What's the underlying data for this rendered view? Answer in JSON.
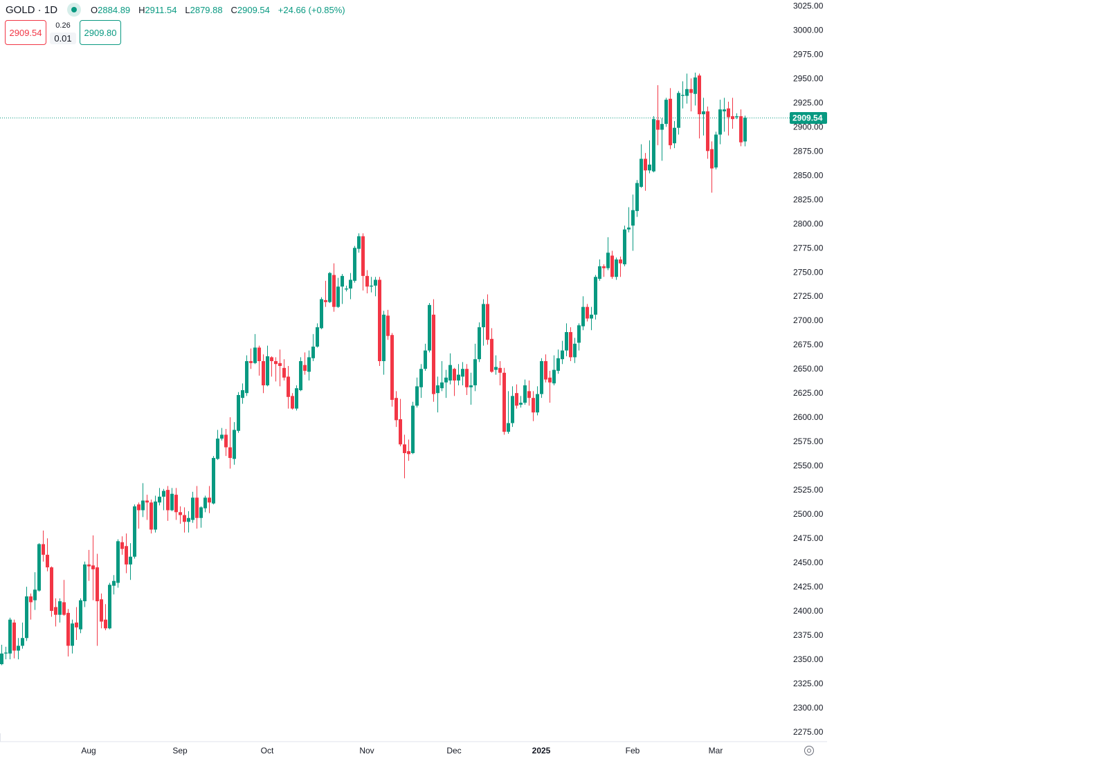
{
  "header": {
    "symbol": "GOLD",
    "separator": " · ",
    "interval": "1D",
    "status_icon": "market-open-dot",
    "ohlc": {
      "o_label": "O",
      "o": "2884.89",
      "h_label": "H",
      "h": "2911.54",
      "l_label": "L",
      "l": "2879.88",
      "c_label": "C",
      "c": "2909.54",
      "change": "+24.66 (+0.85%)"
    },
    "sell_price": "2909.54",
    "spread_top": "0.26",
    "spread": "0.01",
    "buy_price": "2909.80"
  },
  "chart_data": {
    "type": "candlestick",
    "columns": [
      "open",
      "high",
      "low",
      "close"
    ],
    "candles": [
      [
        2345,
        2365,
        2344,
        2356
      ],
      [
        2356,
        2363,
        2350,
        2357
      ],
      [
        2356,
        2393,
        2350,
        2391
      ],
      [
        2388,
        2391,
        2351,
        2359
      ],
      [
        2359,
        2372,
        2350,
        2364
      ],
      [
        2364,
        2388,
        2361,
        2372
      ],
      [
        2372,
        2425,
        2369,
        2415
      ],
      [
        2415,
        2418,
        2391,
        2409
      ],
      [
        2411,
        2440,
        2401,
        2422
      ],
      [
        2421,
        2470,
        2420,
        2469
      ],
      [
        2469,
        2483,
        2451,
        2458
      ],
      [
        2458,
        2475,
        2441,
        2445
      ],
      [
        2445,
        2446,
        2394,
        2400
      ],
      [
        2404,
        2413,
        2384,
        2396
      ],
      [
        2396,
        2413,
        2388,
        2410
      ],
      [
        2409,
        2432,
        2395,
        2396
      ],
      [
        2398,
        2402,
        2353,
        2364
      ],
      [
        2364,
        2391,
        2356,
        2387
      ],
      [
        2388,
        2404,
        2370,
        2383
      ],
      [
        2381,
        2413,
        2377,
        2411
      ],
      [
        2410,
        2451,
        2404,
        2448
      ],
      [
        2448,
        2463,
        2431,
        2446
      ],
      [
        2447,
        2478,
        2411,
        2443
      ],
      [
        2445,
        2459,
        2364,
        2410
      ],
      [
        2412,
        2418,
        2382,
        2389
      ],
      [
        2391,
        2407,
        2380,
        2382
      ],
      [
        2382,
        2429,
        2381,
        2427
      ],
      [
        2426,
        2437,
        2417,
        2431
      ],
      [
        2429,
        2474,
        2424,
        2472
      ],
      [
        2471,
        2477,
        2458,
        2464
      ],
      [
        2467,
        2480,
        2439,
        2448
      ],
      [
        2448,
        2470,
        2432,
        2456
      ],
      [
        2456,
        2510,
        2454,
        2508
      ],
      [
        2510,
        2512,
        2485,
        2504
      ],
      [
        2504,
        2532,
        2497,
        2514
      ],
      [
        2514,
        2520,
        2494,
        2512
      ],
      [
        2512,
        2515,
        2480,
        2484
      ],
      [
        2484,
        2519,
        2481,
        2513
      ],
      [
        2512,
        2527,
        2509,
        2518
      ],
      [
        2518,
        2526,
        2504,
        2524
      ],
      [
        2525,
        2529,
        2493,
        2504
      ],
      [
        2504,
        2527,
        2503,
        2521
      ],
      [
        2520,
        2527,
        2494,
        2502
      ],
      [
        2502,
        2508,
        2490,
        2499
      ],
      [
        2499,
        2507,
        2481,
        2492
      ],
      [
        2492,
        2503,
        2481,
        2496
      ],
      [
        2494,
        2523,
        2491,
        2517
      ],
      [
        2517,
        2529,
        2485,
        2496
      ],
      [
        2496,
        2508,
        2486,
        2507
      ],
      [
        2506,
        2519,
        2502,
        2517
      ],
      [
        2517,
        2529,
        2501,
        2512
      ],
      [
        2511,
        2560,
        2510,
        2558
      ],
      [
        2557,
        2587,
        2556,
        2578
      ],
      [
        2578,
        2589,
        2576,
        2582
      ],
      [
        2582,
        2588,
        2560,
        2569
      ],
      [
        2569,
        2600,
        2547,
        2558
      ],
      [
        2557,
        2595,
        2551,
        2587
      ],
      [
        2586,
        2626,
        2584,
        2623
      ],
      [
        2620,
        2635,
        2614,
        2628
      ],
      [
        2625,
        2664,
        2622,
        2658
      ],
      [
        2658,
        2671,
        2650,
        2656
      ],
      [
        2656,
        2686,
        2655,
        2672
      ],
      [
        2672,
        2674,
        2643,
        2658
      ],
      [
        2658,
        2665,
        2625,
        2633
      ],
      [
        2633,
        2674,
        2632,
        2663
      ],
      [
        2662,
        2663,
        2642,
        2658
      ],
      [
        2658,
        2662,
        2637,
        2655
      ],
      [
        2656,
        2670,
        2632,
        2653
      ],
      [
        2651,
        2660,
        2638,
        2641
      ],
      [
        2642,
        2653,
        2609,
        2621
      ],
      [
        2622,
        2625,
        2608,
        2609
      ],
      [
        2609,
        2633,
        2607,
        2630
      ],
      [
        2628,
        2662,
        2627,
        2658
      ],
      [
        2654,
        2667,
        2644,
        2648
      ],
      [
        2647,
        2669,
        2638,
        2662
      ],
      [
        2661,
        2686,
        2658,
        2673
      ],
      [
        2673,
        2697,
        2672,
        2693
      ],
      [
        2692,
        2724,
        2691,
        2722
      ],
      [
        2721,
        2741,
        2714,
        2719
      ],
      [
        2719,
        2750,
        2718,
        2749
      ],
      [
        2747,
        2759,
        2709,
        2714
      ],
      [
        2714,
        2744,
        2713,
        2735
      ],
      [
        2735,
        2748,
        2717,
        2746
      ],
      [
        2732,
        2736,
        2730,
        2733
      ],
      [
        2733,
        2749,
        2722,
        2742
      ],
      [
        2741,
        2777,
        2739,
        2775
      ],
      [
        2774,
        2790,
        2770,
        2787
      ],
      [
        2787,
        2790,
        2731,
        2746
      ],
      [
        2746,
        2752,
        2728,
        2735
      ],
      [
        2735,
        2745,
        2729,
        2736
      ],
      [
        2736,
        2745,
        2725,
        2742
      ],
      [
        2742,
        2745,
        2653,
        2658
      ],
      [
        2658,
        2710,
        2644,
        2706
      ],
      [
        2705,
        2711,
        2680,
        2684
      ],
      [
        2685,
        2687,
        2611,
        2618
      ],
      [
        2620,
        2627,
        2590,
        2597
      ],
      [
        2598,
        2619,
        2570,
        2572
      ],
      [
        2572,
        2582,
        2537,
        2563
      ],
      [
        2565,
        2577,
        2555,
        2562
      ],
      [
        2563,
        2616,
        2562,
        2612
      ],
      [
        2612,
        2641,
        2610,
        2632
      ],
      [
        2631,
        2655,
        2620,
        2650
      ],
      [
        2650,
        2676,
        2648,
        2669
      ],
      [
        2669,
        2718,
        2667,
        2716
      ],
      [
        2706,
        2722,
        2616,
        2624
      ],
      [
        2625,
        2642,
        2605,
        2633
      ],
      [
        2630,
        2658,
        2627,
        2636
      ],
      [
        2636,
        2649,
        2620,
        2641
      ],
      [
        2638,
        2666,
        2634,
        2654
      ],
      [
        2650,
        2651,
        2622,
        2638
      ],
      [
        2638,
        2655,
        2633,
        2644
      ],
      [
        2642,
        2657,
        2633,
        2650
      ],
      [
        2650,
        2655,
        2623,
        2631
      ],
      [
        2631,
        2646,
        2613,
        2633
      ],
      [
        2633,
        2676,
        2627,
        2660
      ],
      [
        2660,
        2698,
        2657,
        2693
      ],
      [
        2693,
        2722,
        2674,
        2717
      ],
      [
        2717,
        2727,
        2675,
        2680
      ],
      [
        2681,
        2692,
        2646,
        2647
      ],
      [
        2649,
        2664,
        2644,
        2652
      ],
      [
        2651,
        2658,
        2633,
        2646
      ],
      [
        2646,
        2651,
        2582,
        2585
      ],
      [
        2585,
        2627,
        2583,
        2594
      ],
      [
        2594,
        2632,
        2590,
        2622
      ],
      [
        2625,
        2634,
        2609,
        2612
      ],
      [
        2613,
        2622,
        2610,
        2615
      ],
      [
        2615,
        2639,
        2613,
        2633
      ],
      [
        2627,
        2638,
        2612,
        2620
      ],
      [
        2620,
        2627,
        2596,
        2605
      ],
      [
        2605,
        2632,
        2602,
        2624
      ],
      [
        2624,
        2661,
        2620,
        2658
      ],
      [
        2658,
        2665,
        2636,
        2639
      ],
      [
        2641,
        2648,
        2615,
        2636
      ],
      [
        2635,
        2664,
        2633,
        2649
      ],
      [
        2648,
        2670,
        2645,
        2661
      ],
      [
        2660,
        2679,
        2655,
        2669
      ],
      [
        2669,
        2697,
        2663,
        2688
      ],
      [
        2688,
        2693,
        2658,
        2662
      ],
      [
        2662,
        2682,
        2656,
        2676
      ],
      [
        2677,
        2697,
        2669,
        2695
      ],
      [
        2694,
        2725,
        2690,
        2714
      ],
      [
        2714,
        2717,
        2699,
        2702
      ],
      [
        2702,
        2714,
        2690,
        2706
      ],
      [
        2706,
        2747,
        2701,
        2745
      ],
      [
        2743,
        2763,
        2741,
        2756
      ],
      [
        2756,
        2758,
        2745,
        2754
      ],
      [
        2754,
        2786,
        2752,
        2770
      ],
      [
        2767,
        2772,
        2743,
        2745
      ],
      [
        2745,
        2765,
        2742,
        2763
      ],
      [
        2763,
        2766,
        2745,
        2759
      ],
      [
        2758,
        2798,
        2756,
        2794
      ],
      [
        2794,
        2817,
        2791,
        2796
      ],
      [
        2798,
        2830,
        2772,
        2814
      ],
      [
        2813,
        2845,
        2807,
        2842
      ],
      [
        2838,
        2882,
        2837,
        2867
      ],
      [
        2867,
        2873,
        2834,
        2855
      ],
      [
        2855,
        2886,
        2852,
        2861
      ],
      [
        2854,
        2911,
        2853,
        2908
      ],
      [
        2907,
        2943,
        2881,
        2897
      ],
      [
        2897,
        2909,
        2865,
        2903
      ],
      [
        2903,
        2930,
        2900,
        2928
      ],
      [
        2929,
        2940,
        2877,
        2881
      ],
      [
        2883,
        2906,
        2878,
        2899
      ],
      [
        2899,
        2937,
        2892,
        2935
      ],
      [
        2932,
        2947,
        2919,
        2933
      ],
      [
        2932,
        2955,
        2924,
        2939
      ],
      [
        2939,
        2950,
        2916,
        2935
      ],
      [
        2934,
        2956,
        2922,
        2951
      ],
      [
        2953,
        2955,
        2888,
        2913
      ],
      [
        2913,
        2930,
        2891,
        2916
      ],
      [
        2916,
        2921,
        2867,
        2875
      ],
      [
        2877,
        2885,
        2832,
        2857
      ],
      [
        2858,
        2895,
        2856,
        2892
      ],
      [
        2892,
        2928,
        2882,
        2918
      ],
      [
        2916,
        2930,
        2895,
        2918
      ],
      [
        2919,
        2926,
        2891,
        2910
      ],
      [
        2911,
        2930,
        2898,
        2908
      ],
      [
        2910,
        2914,
        2908,
        2911
      ],
      [
        2911,
        2918,
        2880,
        2884
      ],
      [
        2884.89,
        2911.54,
        2879.88,
        2909.54
      ]
    ],
    "ylim": [
      2265,
      3031
    ],
    "y_ticks": [
      "3025.00",
      "3000.00",
      "2975.00",
      "2950.00",
      "2925.00",
      "2900.00",
      "2875.00",
      "2850.00",
      "2825.00",
      "2800.00",
      "2775.00",
      "2750.00",
      "2725.00",
      "2700.00",
      "2675.00",
      "2650.00",
      "2625.00",
      "2600.00",
      "2575.00",
      "2550.00",
      "2525.00",
      "2500.00",
      "2475.00",
      "2450.00",
      "2425.00",
      "2400.00",
      "2375.00",
      "2350.00",
      "2325.00",
      "2300.00",
      "2275.00"
    ],
    "x_ticks": [
      {
        "label": "Aug",
        "index": 21,
        "bold": false
      },
      {
        "label": "Sep",
        "index": 43,
        "bold": false
      },
      {
        "label": "Oct",
        "index": 64,
        "bold": false
      },
      {
        "label": "Nov",
        "index": 88,
        "bold": false
      },
      {
        "label": "Dec",
        "index": 109,
        "bold": false
      },
      {
        "label": "2025",
        "index": 130,
        "bold": true
      },
      {
        "label": "Feb",
        "index": 152,
        "bold": false
      },
      {
        "label": "Mar",
        "index": 172,
        "bold": false
      }
    ],
    "last_price": 2909.54,
    "last_price_label": "2909.54",
    "grid": false,
    "colors": {
      "up": "#089981",
      "down": "#F23645",
      "last_price_line": "#089981"
    }
  },
  "footer": {
    "settings_icon": "gear-icon"
  }
}
